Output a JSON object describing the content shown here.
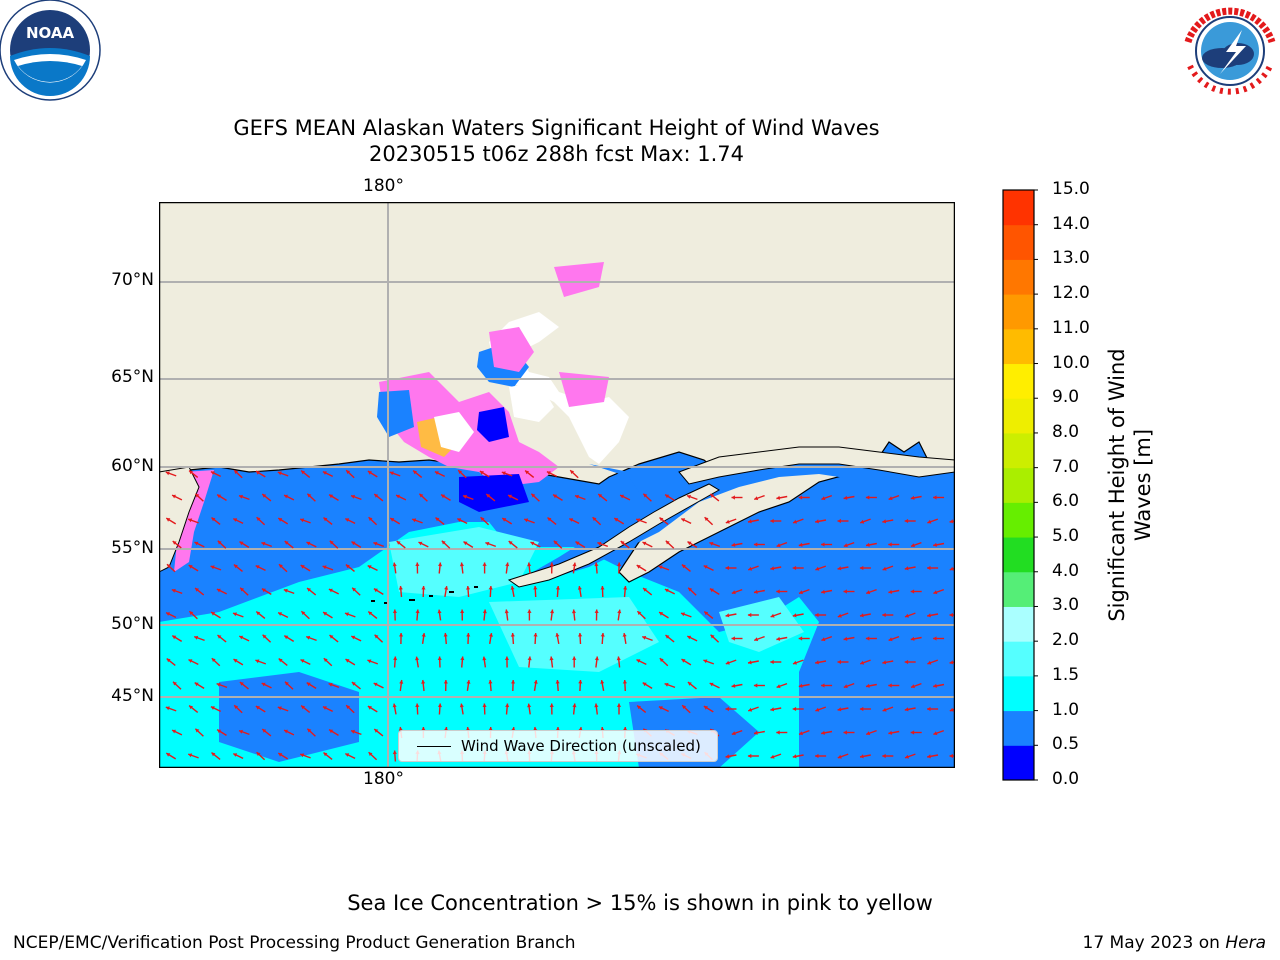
{
  "header": {
    "title_line1": "GEFS MEAN Alaskan Waters Significant Height of Wind Waves",
    "title_line2": "20230515 t06z 288h fcst   Max: 1.74"
  },
  "logos": {
    "left": {
      "name": "noaa-logo",
      "text": "NOAA",
      "ring_text": "NATIONAL OCEANIC AND ATMOSPHERIC ADMINISTRATION · U.S. DEPARTMENT OF COMMERCE"
    },
    "right": {
      "name": "nws-logo",
      "ring_text": "NATIONAL WEATHER SERVICE"
    }
  },
  "map": {
    "lon_label_top": "180°",
    "lon_label_bottom": "180°",
    "lat_labels": [
      "70°N",
      "65°N",
      "60°N",
      "55°N",
      "50°N",
      "45°N"
    ],
    "legend_label": "Wind Wave Direction (unscaled)",
    "colors": {
      "land": "#efedde",
      "ocean": "#1a82ff",
      "ocean_light": "#00ffff",
      "ocean_mid": "#55ffff",
      "deep": "#0000ff",
      "ice_pink": "#ff77ee",
      "ice_orange": "#ffbb44",
      "ice_white": "#ffffff",
      "arrow": "#e31a1c",
      "grid": "#b0b0b0"
    }
  },
  "colorbar": {
    "title_line1": "Significant Height of Wind",
    "title_line2": "Waves [m]",
    "ticks": [
      "15.0",
      "14.0",
      "13.0",
      "12.0",
      "11.0",
      "10.0",
      "9.0",
      "8.0",
      "7.0",
      "6.0",
      "5.0",
      "4.0",
      "3.0",
      "2.0",
      "1.5",
      "1.0",
      "0.5",
      "0.0"
    ],
    "colors": [
      "#0000ff",
      "#1a82ff",
      "#00ffff",
      "#55ffff",
      "#aaffff",
      "#55ee77",
      "#22dd22",
      "#66ee00",
      "#aaee00",
      "#ccee00",
      "#eeee00",
      "#ffee00",
      "#ffbb00",
      "#ff9900",
      "#ff7700",
      "#ff5500",
      "#ff3300"
    ]
  },
  "chart_data": {
    "type": "heatmap",
    "title": "GEFS MEAN Alaskan Waters Significant Height of Wind Waves",
    "subtitle": "20230515 t06z 288h fcst   Max: 1.74",
    "variable": "Significant Height of Wind Waves [m]",
    "max_value": 1.74,
    "colorbar_levels": [
      0.0,
      0.5,
      1.0,
      1.5,
      2.0,
      3.0,
      4.0,
      5.0,
      6.0,
      7.0,
      8.0,
      9.0,
      10.0,
      11.0,
      12.0,
      13.0,
      14.0,
      15.0
    ],
    "latitude_labels": [
      "70°N",
      "65°N",
      "60°N",
      "55°N",
      "50°N",
      "45°N"
    ],
    "longitude_labels": [
      "180°"
    ],
    "vector_field": "Wind Wave Direction (unscaled)"
  },
  "footer": {
    "note": "Sea Ice Concentration > 15% is shown in pink to yellow",
    "left": "NCEP/EMC/Verification Post Processing Product Generation Branch",
    "date": "17 May 2023 on",
    "machine": "Hera"
  }
}
